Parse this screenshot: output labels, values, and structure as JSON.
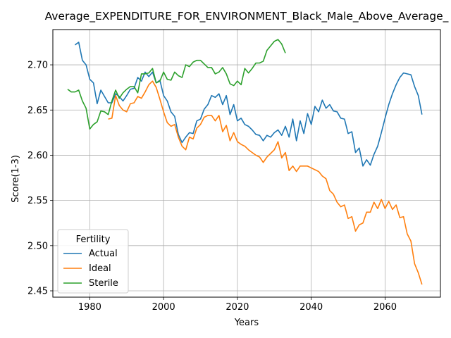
{
  "chart_data": {
    "type": "line",
    "title": "Average_EXPENDITURE_FOR_ENVIRONMENT_Black_Male_Above_Average_",
    "xlabel": "Years",
    "ylabel": "Score(1-3)",
    "xlim": [
      1970,
      2075
    ],
    "ylim": [
      2.443,
      2.739
    ],
    "xticks": [
      1980,
      2000,
      2020,
      2040,
      2060
    ],
    "xtick_labels": [
      "1980",
      "2000",
      "2020",
      "2040",
      "2060"
    ],
    "yticks": [
      2.45,
      2.5,
      2.55,
      2.6,
      2.65,
      2.7
    ],
    "ytick_labels": [
      "2.45",
      "2.50",
      "2.55",
      "2.60",
      "2.65",
      "2.70"
    ],
    "grid": true,
    "legend": {
      "title": "Fertility",
      "placement": "lower-left"
    },
    "series": [
      {
        "name": "Actual",
        "color": "#1f77b4",
        "x": [
          1976,
          1977,
          1978,
          1979,
          1980,
          1981,
          1982,
          1983,
          1984,
          1985,
          1986,
          1987,
          1988,
          1989,
          1990,
          1991,
          1992,
          1993,
          1994,
          1995,
          1996,
          1997,
          1998,
          1999,
          2000,
          2001,
          2002,
          2003,
          2004,
          2005,
          2006,
          2007,
          2008,
          2009,
          2010,
          2011,
          2012,
          2013,
          2014,
          2015,
          2016,
          2017,
          2018,
          2019,
          2020,
          2021,
          2022,
          2023,
          2024,
          2025,
          2026,
          2027,
          2028,
          2029,
          2030,
          2031,
          2032,
          2033,
          2034,
          2035,
          2036,
          2037,
          2038,
          2039,
          2040,
          2041,
          2042,
          2043,
          2044,
          2045,
          2046,
          2047,
          2048,
          2049,
          2050,
          2051,
          2052,
          2053,
          2054,
          2055,
          2056,
          2057,
          2058,
          2059,
          2060,
          2061,
          2062,
          2063,
          2064,
          2065,
          2066,
          2067,
          2068,
          2069,
          2070
        ],
        "y": [
          2.722,
          2.725,
          2.705,
          2.7,
          2.684,
          2.68,
          2.657,
          2.672,
          2.665,
          2.658,
          2.658,
          2.668,
          2.665,
          2.66,
          2.666,
          2.673,
          2.674,
          2.686,
          2.682,
          2.692,
          2.687,
          2.692,
          2.68,
          2.683,
          2.666,
          2.66,
          2.648,
          2.643,
          2.623,
          2.614,
          2.62,
          2.625,
          2.624,
          2.638,
          2.64,
          2.651,
          2.656,
          2.666,
          2.664,
          2.668,
          2.656,
          2.666,
          2.645,
          2.656,
          2.638,
          2.641,
          2.634,
          2.632,
          2.628,
          2.623,
          2.622,
          2.616,
          2.622,
          2.62,
          2.625,
          2.628,
          2.622,
          2.632,
          2.62,
          2.64,
          2.616,
          2.638,
          2.624,
          2.646,
          2.634,
          2.654,
          2.648,
          2.661,
          2.652,
          2.656,
          2.649,
          2.648,
          2.641,
          2.64,
          2.624,
          2.626,
          2.603,
          2.608,
          2.588,
          2.595,
          2.589,
          2.601,
          2.61,
          2.625,
          2.641,
          2.656,
          2.668,
          2.678,
          2.686,
          2.691,
          2.69,
          2.689,
          2.676,
          2.666,
          2.645
        ]
      },
      {
        "name": "Ideal",
        "color": "#ff7f0e",
        "x": [
          1985,
          1986,
          1987,
          1988,
          1989,
          1990,
          1991,
          1992,
          1993,
          1994,
          1995,
          1996,
          1997,
          1998,
          1999,
          2000,
          2001,
          2002,
          2003,
          2004,
          2005,
          2006,
          2007,
          2008,
          2009,
          2010,
          2011,
          2012,
          2013,
          2014,
          2015,
          2016,
          2017,
          2018,
          2019,
          2020,
          2021,
          2022,
          2023,
          2024,
          2025,
          2026,
          2027,
          2028,
          2029,
          2030,
          2031,
          2032,
          2033,
          2034,
          2035,
          2036,
          2037,
          2038,
          2039,
          2040,
          2041,
          2042,
          2043,
          2044,
          2045,
          2046,
          2047,
          2048,
          2049,
          2050,
          2051,
          2052,
          2053,
          2054,
          2055,
          2056,
          2057,
          2058,
          2059,
          2060,
          2061,
          2062,
          2063,
          2064,
          2065,
          2066,
          2067,
          2068,
          2069,
          2070
        ],
        "y": [
          2.64,
          2.641,
          2.666,
          2.655,
          2.65,
          2.648,
          2.657,
          2.658,
          2.665,
          2.663,
          2.67,
          2.678,
          2.682,
          2.675,
          2.662,
          2.648,
          2.636,
          2.632,
          2.634,
          2.62,
          2.61,
          2.606,
          2.62,
          2.618,
          2.63,
          2.634,
          2.642,
          2.644,
          2.644,
          2.638,
          2.644,
          2.626,
          2.633,
          2.616,
          2.625,
          2.615,
          2.612,
          2.61,
          2.606,
          2.603,
          2.6,
          2.598,
          2.592,
          2.598,
          2.602,
          2.606,
          2.615,
          2.597,
          2.603,
          2.583,
          2.588,
          2.582,
          2.588,
          2.588,
          2.588,
          2.586,
          2.584,
          2.582,
          2.577,
          2.574,
          2.561,
          2.557,
          2.548,
          2.543,
          2.545,
          2.53,
          2.532,
          2.516,
          2.523,
          2.525,
          2.537,
          2.537,
          2.548,
          2.541,
          2.551,
          2.541,
          2.549,
          2.54,
          2.545,
          2.531,
          2.532,
          2.513,
          2.505,
          2.48,
          2.47,
          2.457
        ]
      },
      {
        "name": "Sterile",
        "color": "#2ca02c",
        "x": [
          1974,
          1975,
          1976,
          1977,
          1978,
          1979,
          1980,
          1981,
          1982,
          1983,
          1984,
          1985,
          1986,
          1987,
          1988,
          1989,
          1990,
          1991,
          1992,
          1993,
          1994,
          1995,
          1996,
          1997,
          1998,
          1999,
          2000,
          2001,
          2002,
          2003,
          2004,
          2005,
          2006,
          2007,
          2008,
          2009,
          2010,
          2011,
          2012,
          2013,
          2014,
          2015,
          2016,
          2017,
          2018,
          2019,
          2020,
          2021,
          2022,
          2023,
          2024,
          2025,
          2026,
          2027,
          2028,
          2029,
          2030,
          2031,
          2032,
          2033
        ],
        "y": [
          2.673,
          2.67,
          2.67,
          2.672,
          2.66,
          2.652,
          2.629,
          2.634,
          2.637,
          2.649,
          2.648,
          2.645,
          2.66,
          2.672,
          2.663,
          2.669,
          2.673,
          2.676,
          2.676,
          2.669,
          2.69,
          2.69,
          2.691,
          2.696,
          2.68,
          2.682,
          2.692,
          2.684,
          2.683,
          2.692,
          2.688,
          2.686,
          2.7,
          2.698,
          2.703,
          2.705,
          2.705,
          2.701,
          2.697,
          2.697,
          2.69,
          2.692,
          2.697,
          2.69,
          2.679,
          2.677,
          2.682,
          2.678,
          2.696,
          2.691,
          2.696,
          2.702,
          2.702,
          2.704,
          2.716,
          2.721,
          2.726,
          2.728,
          2.723,
          2.713
        ]
      }
    ]
  }
}
